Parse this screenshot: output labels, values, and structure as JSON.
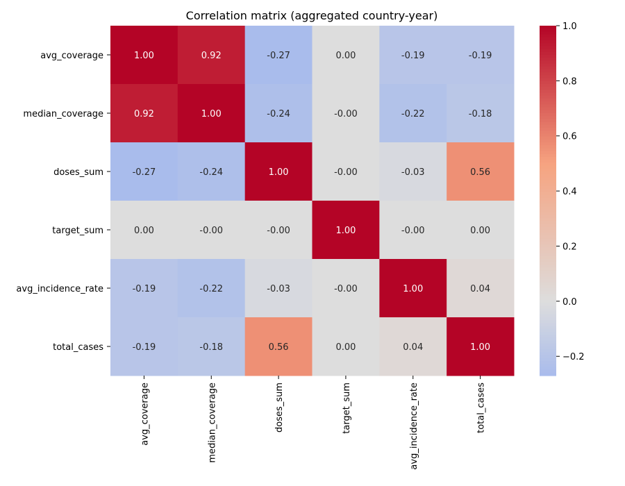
{
  "chart_data": {
    "type": "heatmap",
    "title": "Correlation matrix (aggregated country-year)",
    "rows": [
      "avg_coverage",
      "median_coverage",
      "doses_sum",
      "target_sum",
      "avg_incidence_rate",
      "total_cases"
    ],
    "columns": [
      "avg_coverage",
      "median_coverage",
      "doses_sum",
      "target_sum",
      "avg_incidence_rate",
      "total_cases"
    ],
    "values": [
      [
        1.0,
        0.92,
        -0.27,
        0.0,
        -0.19,
        -0.19
      ],
      [
        0.92,
        1.0,
        -0.24,
        -0.0,
        -0.22,
        -0.18
      ],
      [
        -0.27,
        -0.24,
        1.0,
        -0.0,
        -0.03,
        0.56
      ],
      [
        0.0,
        -0.0,
        -0.0,
        1.0,
        -0.0,
        0.0
      ],
      [
        -0.19,
        -0.22,
        -0.03,
        -0.0,
        1.0,
        0.04
      ],
      [
        -0.19,
        -0.18,
        0.56,
        0.0,
        0.04,
        1.0
      ]
    ],
    "value_labels": [
      [
        "1.00",
        "0.92",
        "-0.27",
        "0.00",
        "-0.19",
        "-0.19"
      ],
      [
        "0.92",
        "1.00",
        "-0.24",
        "-0.00",
        "-0.22",
        "-0.18"
      ],
      [
        "-0.27",
        "-0.24",
        "1.00",
        "-0.00",
        "-0.03",
        "0.56"
      ],
      [
        "0.00",
        "-0.00",
        "-0.00",
        "1.00",
        "-0.00",
        "0.00"
      ],
      [
        "-0.19",
        "-0.22",
        "-0.03",
        "-0.00",
        "1.00",
        "0.04"
      ],
      [
        "-0.19",
        "-0.18",
        "0.56",
        "0.00",
        "0.04",
        "1.00"
      ]
    ],
    "colormap": "coolwarm",
    "center": 0.0,
    "vmin": -0.27,
    "vmax": 1.0,
    "colorbar": {
      "ticks": [
        1.0,
        0.8,
        0.6,
        0.4,
        0.2,
        0.0,
        -0.2
      ],
      "tick_labels": [
        "1.0",
        "0.8",
        "0.6",
        "0.4",
        "0.2",
        "0.0",
        "−0.2"
      ],
      "position": "right"
    },
    "grid": false,
    "legend": "none"
  }
}
